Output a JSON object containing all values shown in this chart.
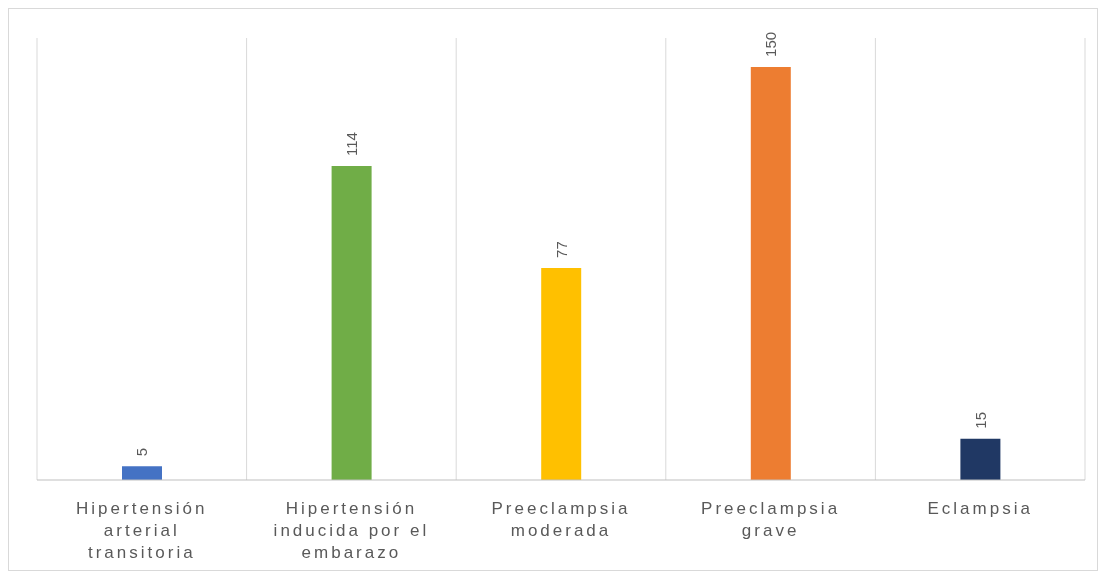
{
  "chart_data": {
    "type": "bar",
    "categories": [
      "Hipertensión arterial transitoria",
      "Hipertensión inducida por el embarazo",
      "Preeclampsia moderada",
      "Preeclampsia grave",
      "Eclampsia"
    ],
    "values": [
      5,
      114,
      77,
      150,
      15
    ],
    "colors": [
      "#4472c4",
      "#70ad47",
      "#ffc000",
      "#ed7d31",
      "#203864"
    ],
    "data_labels": true,
    "grid": "x"
  }
}
